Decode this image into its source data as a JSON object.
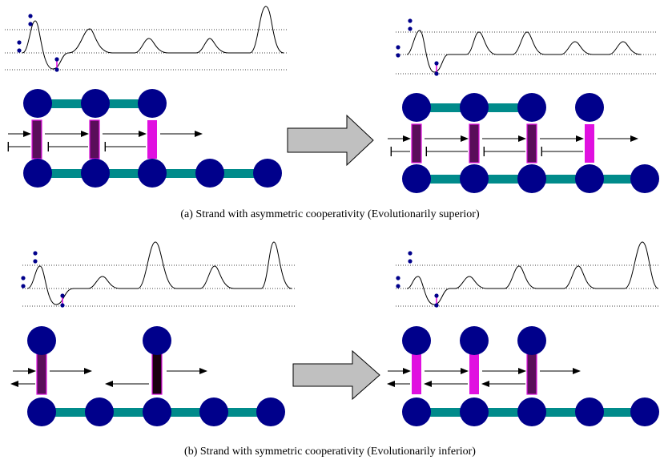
{
  "panels": [
    {
      "id": "a",
      "caption": "(a) Strand with asymmetric cooperativity (Evolutionarily superior)"
    },
    {
      "id": "b",
      "caption": "(b) Strand with symmetric cooperativity (Evolutionarily inferior)"
    }
  ],
  "colors": {
    "node": "#00008b",
    "backbone": "#008b8b",
    "bond_active": "#e010e0",
    "bond_dark": "#5a0e5a",
    "bond_black": "#1a0010",
    "arrow_fill": "#c0c0c0",
    "line": "#000000"
  }
}
